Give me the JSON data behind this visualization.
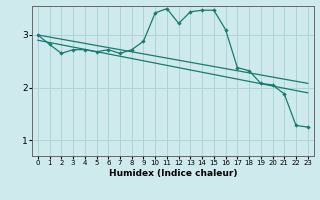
{
  "xlabel": "Humidex (Indice chaleur)",
  "background_color": "#ceeaed",
  "line_color": "#1a7a6e",
  "grid_color": "#aed4d8",
  "ylim": [
    0.7,
    3.55
  ],
  "xlim": [
    -0.5,
    23.5
  ],
  "yticks": [
    1,
    2,
    3
  ],
  "xticks": [
    0,
    1,
    2,
    3,
    4,
    5,
    6,
    7,
    8,
    9,
    10,
    11,
    12,
    13,
    14,
    15,
    16,
    17,
    18,
    19,
    20,
    21,
    22,
    23
  ],
  "series1_x": [
    0,
    1,
    2,
    3,
    4,
    5,
    6,
    7,
    8,
    9,
    10,
    11,
    12,
    13,
    14,
    15,
    16,
    17,
    18,
    19,
    20,
    21,
    22,
    23
  ],
  "series1_y": [
    3.0,
    2.82,
    2.65,
    2.72,
    2.72,
    2.68,
    2.72,
    2.65,
    2.72,
    2.88,
    3.42,
    3.5,
    3.22,
    3.44,
    3.47,
    3.47,
    3.1,
    2.38,
    2.32,
    2.08,
    2.05,
    1.88,
    1.28,
    1.25
  ],
  "series2_x": [
    0,
    23
  ],
  "series2_y": [
    3.0,
    2.08
  ],
  "series3_x": [
    0,
    23
  ],
  "series3_y": [
    2.9,
    1.9
  ]
}
